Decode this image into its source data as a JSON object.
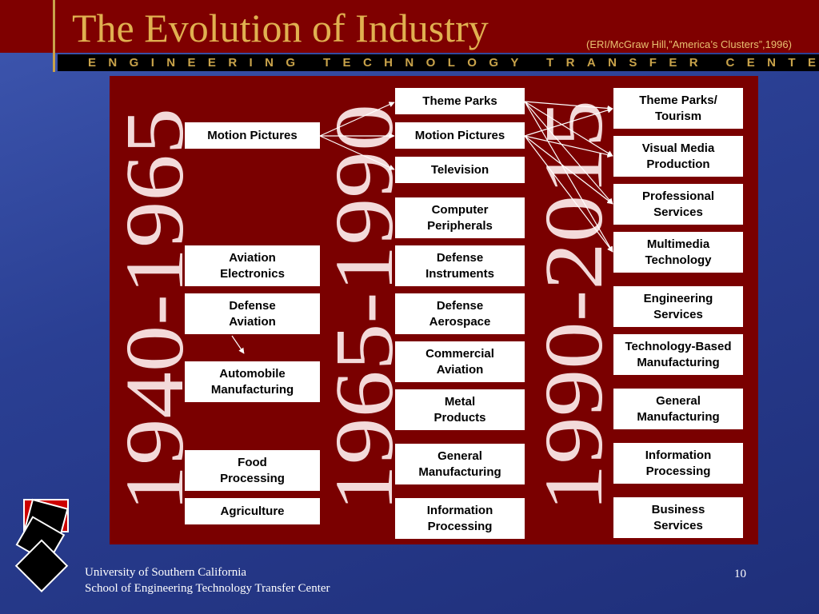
{
  "header": {
    "title": "The Evolution of Industry",
    "citation": "(ERI/McGraw Hill,”America’s Clusters”,1996)",
    "banner": "ENGINEERING TECHNOLOGY TRANSFER CENTER"
  },
  "eras": [
    "1940-1965",
    "1965-1990",
    "1990-2015"
  ],
  "columns": [
    [
      "Motion Pictures",
      "Aviation\nElectronics",
      "Defense\nAviation",
      "Automobile\nManufacturing",
      "Food\nProcessing",
      "Agriculture"
    ],
    [
      "Theme Parks",
      "Motion Pictures",
      "Television",
      "Computer\nPeripherals",
      "Defense\nInstruments",
      "Defense\nAerospace",
      "Commercial\nAviation",
      "Metal\nProducts",
      "General\nManufacturing",
      "Information\nProcessing"
    ],
    [
      "Theme Parks/\nTourism",
      "Visual Media\nProduction",
      "Professional\nServices",
      "Multimedia\nTechnology",
      "Engineering\nServices",
      "Technology-Based\nManufacturing",
      "General\nManufacturing",
      "Information\nProcessing",
      "Business\nServices"
    ]
  ],
  "footer": {
    "line1": "University of Southern California",
    "line2": "School of Engineering Technology Transfer Center",
    "page": "10"
  }
}
